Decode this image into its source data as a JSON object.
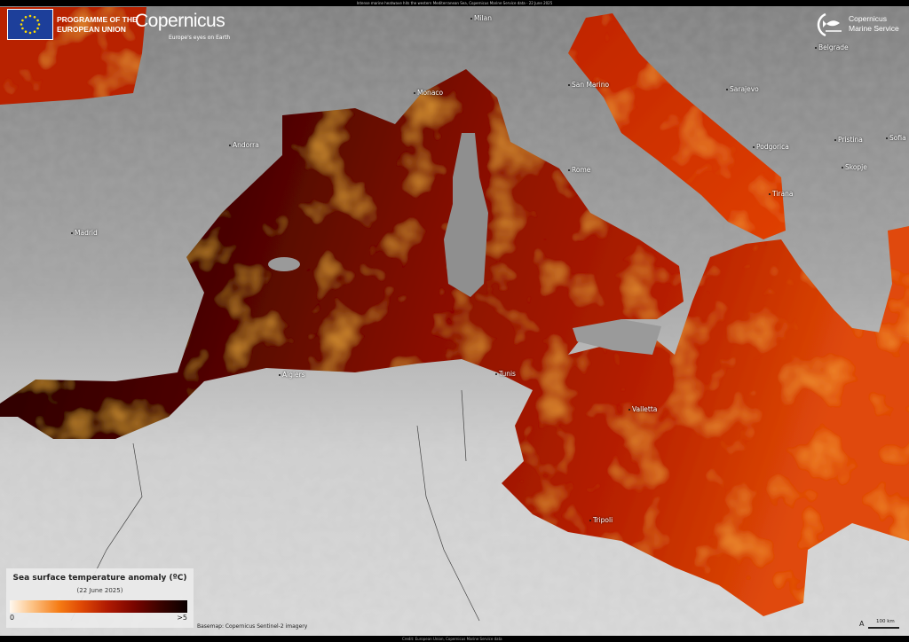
{
  "header": {
    "title": "Intense marine heatwave hits the western Mediterranean Sea, Copernicus Marine Service data - 22 June 2025"
  },
  "logos": {
    "eu_programme": "PROGRAMME OF THE EUROPEAN UNION",
    "eu_programme_line1": "PROGRAMME OF THE",
    "eu_programme_line2": "EUROPEAN UNION",
    "copernicus": "Copernicus",
    "copernicus_tagline": "Europe's eyes on Earth",
    "cms_line1": "Copernicus",
    "cms_line2": "Marine Service"
  },
  "cities": [
    {
      "name": "Milan"
    },
    {
      "name": "Monaco"
    },
    {
      "name": "Andorra"
    },
    {
      "name": "Madrid"
    },
    {
      "name": "San Marino"
    },
    {
      "name": "Rome"
    },
    {
      "name": "Sarajevo"
    },
    {
      "name": "Podgorica"
    },
    {
      "name": "Pristina"
    },
    {
      "name": "Sofia"
    },
    {
      "name": "Skopje"
    },
    {
      "name": "Tirana"
    },
    {
      "name": "Belgrade"
    },
    {
      "name": "Algiers"
    },
    {
      "name": "Tunis"
    },
    {
      "name": "Valletta"
    },
    {
      "name": "Tripoli"
    }
  ],
  "legend": {
    "title": "Sea surface temperature anomaly (ºC)",
    "date": "(22 June 2025)",
    "min_label": "0",
    "max_label": ">5",
    "colors": [
      "#fff8ee",
      "#f57b14",
      "#b01a02",
      "#0a0000"
    ]
  },
  "basemap_credit": "Basemap: Copernicus Sentinel-2 imagery",
  "scale_bar": {
    "label": "100 km",
    "north_symbol": "A"
  },
  "footer": {
    "credit": "Credit: European Union, Copernicus Marine Service data"
  },
  "colors": {
    "land_north": "#8a8a8a",
    "land_south": "#d9d9d9",
    "sea_cold": "#2a0000",
    "sea_hot": "#e0400a"
  }
}
